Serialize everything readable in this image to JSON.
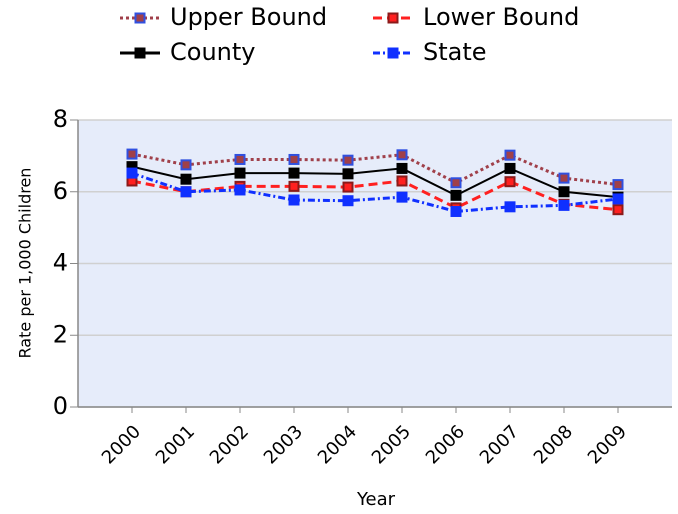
{
  "chart_data": {
    "type": "line",
    "x_label": "Year",
    "y_label": "Rate per 1,000 Children",
    "categories": [
      "2000",
      "2001",
      "2002",
      "2003",
      "2004",
      "2005",
      "2006",
      "2007",
      "2008",
      "2009"
    ],
    "series": [
      {
        "name": "Upper Bound",
        "color": "#a0404a",
        "marker_color": "#3050e0",
        "line_style": "dotted",
        "values": [
          7.05,
          6.75,
          6.9,
          6.9,
          6.88,
          7.03,
          6.25,
          7.02,
          6.38,
          6.2
        ]
      },
      {
        "name": "Lower Bound",
        "color": "#ff2020",
        "marker_color": "#8b1a1a",
        "line_style": "dashed",
        "values": [
          6.3,
          6.0,
          6.15,
          6.15,
          6.13,
          6.3,
          5.55,
          6.28,
          5.65,
          5.5
        ]
      },
      {
        "name": "County",
        "color": "#000000",
        "marker_color": "#000000",
        "line_style": "solid",
        "values": [
          6.7,
          6.35,
          6.52,
          6.52,
          6.5,
          6.65,
          5.9,
          6.65,
          6.0,
          5.85
        ]
      },
      {
        "name": "State",
        "color": "#1030ff",
        "marker_color": "#1030ff",
        "line_style": "dashdot",
        "values": [
          6.52,
          6.0,
          6.05,
          5.77,
          5.75,
          5.85,
          5.45,
          5.58,
          5.62,
          5.8
        ]
      }
    ],
    "ylim": [
      0,
      8
    ],
    "yticks": [
      0,
      2,
      4,
      6,
      8
    ],
    "grid": true,
    "plot_background": "#e6ecfa"
  }
}
